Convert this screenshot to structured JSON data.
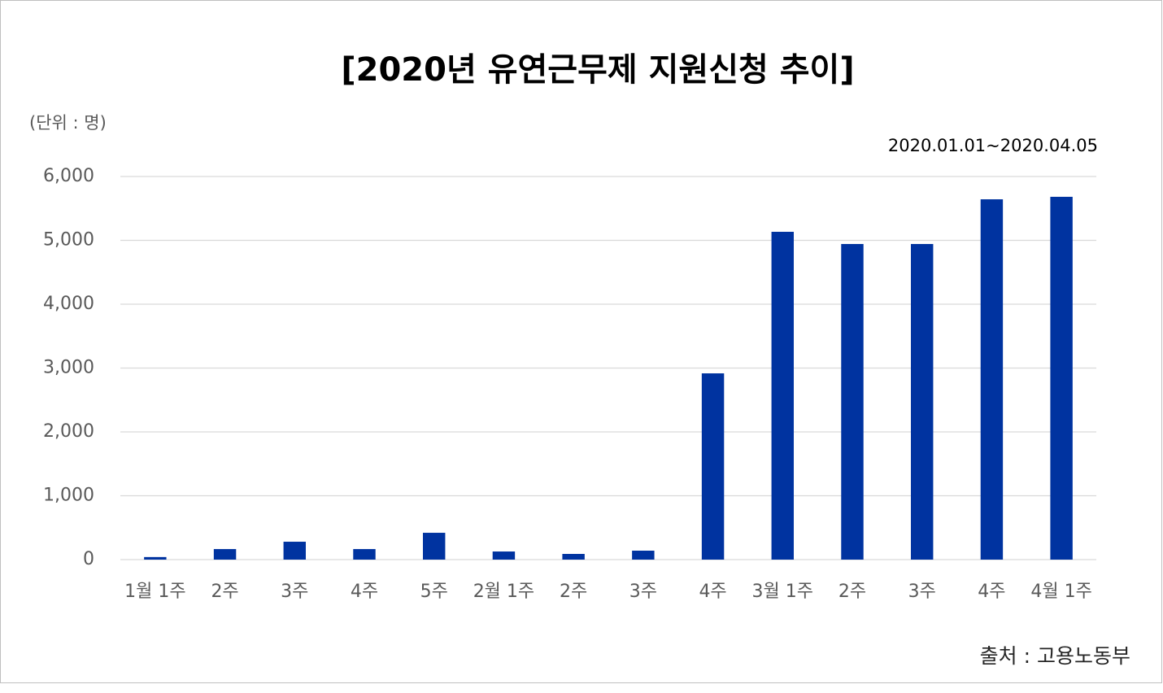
{
  "chart_data": {
    "type": "bar",
    "title": "[2020년 유연근무제 지원신청 추이]",
    "unit_label": "(단위 : 명)",
    "date_range": "2020.01.01~2020.04.05",
    "source": "출처 : 고용노동부",
    "categories": [
      "1월 1주",
      "2주",
      "3주",
      "4주",
      "5주",
      "2월 1주",
      "2주",
      "3주",
      "4주",
      "3월 1주",
      "2주",
      "3주",
      "4주",
      "4월 1주"
    ],
    "values": [
      40,
      165,
      280,
      165,
      420,
      127,
      89,
      140,
      2917,
      5134,
      4943,
      4943,
      5643,
      5682
    ],
    "color": "#0033a0",
    "ylim": [
      0,
      6000
    ],
    "yticks": [
      0,
      {
        "value": 1000,
        "label": "1,000"
      },
      {
        "value": 2000,
        "label": "2,000"
      },
      {
        "value": 3000,
        "label": "3,000"
      },
      {
        "value": 4000,
        "label": "4,000"
      },
      {
        "value": 5000,
        "label": "5,000"
      },
      {
        "value": 6000,
        "label": "6,000"
      }
    ],
    "grid": true
  }
}
